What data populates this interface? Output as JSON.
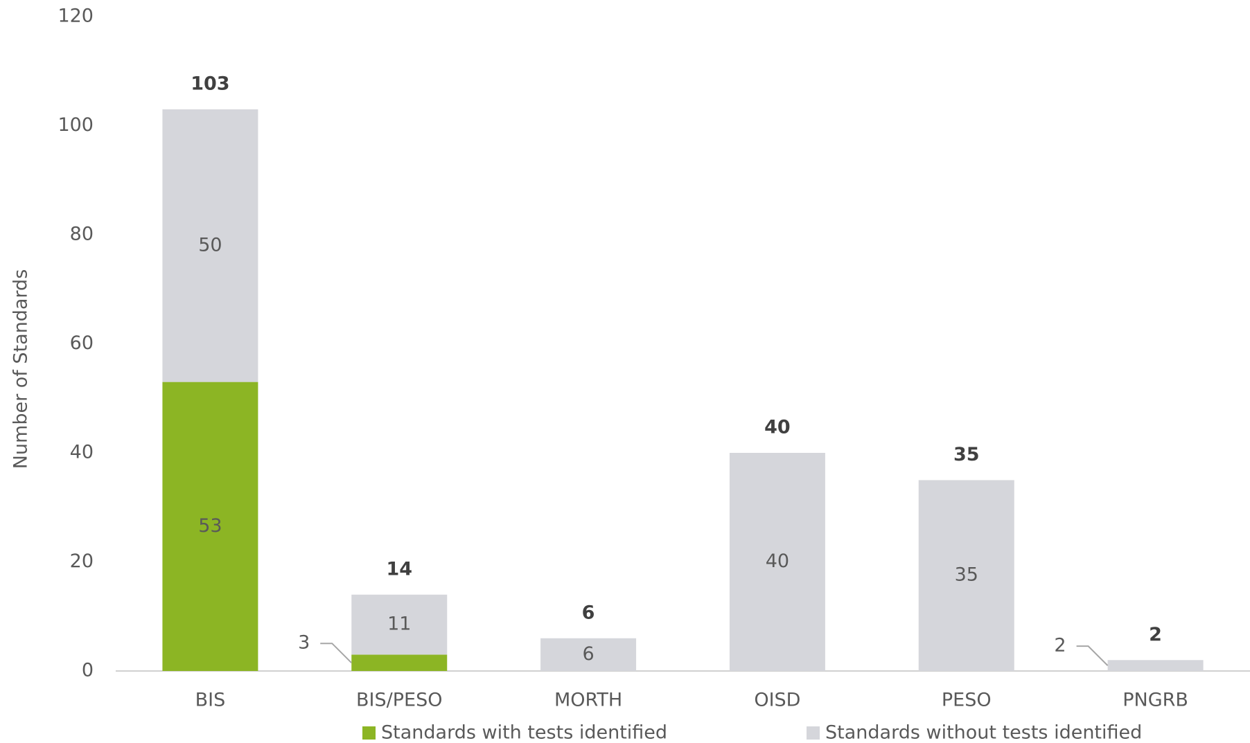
{
  "chart_data": {
    "type": "stacked_bar",
    "y_axis_label": "Number of Standards",
    "categories": [
      "BIS",
      "BIS/PESO",
      "MORTH",
      "OISD",
      "PESO",
      "PNGRB"
    ],
    "series": [
      {
        "name": "Standards with tests identified",
        "color": "#8cb524",
        "values": [
          53,
          3,
          0,
          0,
          0,
          0
        ]
      },
      {
        "name": "Standards without tests identified",
        "color": "#d5d6db",
        "values": [
          50,
          11,
          6,
          40,
          35,
          2
        ]
      }
    ],
    "totals": [
      103,
      14,
      6,
      40,
      35,
      2
    ],
    "ylim": [
      0,
      120
    ],
    "yticks": [
      0,
      20,
      40,
      60,
      80,
      100,
      120
    ],
    "grid": false,
    "legend": "bottom"
  }
}
